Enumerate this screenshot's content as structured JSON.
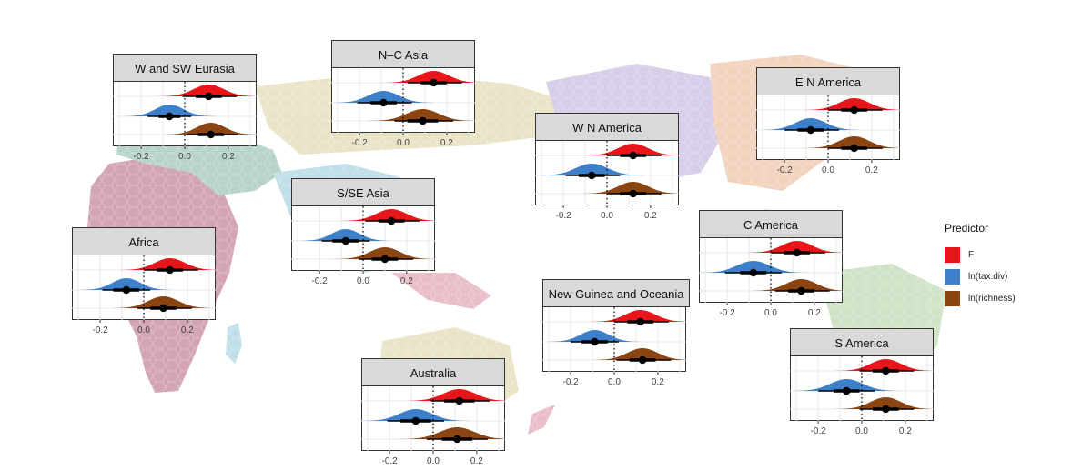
{
  "colors": {
    "F": "#e8161b",
    "tax_div": "#3d7fc9",
    "richness": "#8b4513",
    "ci": "#000000",
    "grid": "#e8e8e8"
  },
  "legend": {
    "title": "Predictor",
    "items": [
      {
        "label": "F",
        "color": "#e8161b"
      },
      {
        "label": "ln(tax.div)",
        "color": "#3d7fc9"
      },
      {
        "label": "ln(richness)",
        "color": "#8b4513"
      }
    ]
  },
  "chart_data": [
    {
      "type": "density",
      "panel": "W and SW Eurasia",
      "xticks": [
        "-0.2",
        "0.0",
        "0.2"
      ],
      "xlim": [
        -0.33,
        0.33
      ],
      "series": [
        {
          "name": "F",
          "mean": 0.11,
          "sd": 0.07,
          "inner": [
            0.05,
            0.17
          ],
          "outer": [
            -0.01,
            0.24
          ]
        },
        {
          "name": "ln(tax.div)",
          "mean": -0.07,
          "sd": 0.065,
          "inner": [
            -0.12,
            -0.02
          ],
          "outer": [
            -0.17,
            0.03
          ]
        },
        {
          "name": "ln(richness)",
          "mean": 0.12,
          "sd": 0.065,
          "inner": [
            0.06,
            0.18
          ],
          "outer": [
            0.01,
            0.24
          ]
        }
      ]
    },
    {
      "type": "density",
      "panel": "N–C Asia",
      "xticks": [
        "-0.2",
        "0.0",
        "0.2"
      ],
      "xlim": [
        -0.33,
        0.33
      ],
      "series": [
        {
          "name": "F",
          "mean": 0.14,
          "sd": 0.07,
          "inner": [
            0.08,
            0.2
          ],
          "outer": [
            0.02,
            0.27
          ]
        },
        {
          "name": "ln(tax.div)",
          "mean": -0.09,
          "sd": 0.07,
          "inner": [
            -0.15,
            -0.03
          ],
          "outer": [
            -0.21,
            0.04
          ]
        },
        {
          "name": "ln(richness)",
          "mean": 0.09,
          "sd": 0.075,
          "inner": [
            0.02,
            0.16
          ],
          "outer": [
            -0.04,
            0.23
          ]
        }
      ]
    },
    {
      "type": "density",
      "panel": "E N America",
      "xticks": [
        "-0.2",
        "0.0",
        "0.2"
      ],
      "xlim": [
        -0.33,
        0.33
      ],
      "series": [
        {
          "name": "F",
          "mean": 0.12,
          "sd": 0.07,
          "inner": [
            0.06,
            0.18
          ],
          "outer": [
            0.0,
            0.25
          ]
        },
        {
          "name": "ln(tax.div)",
          "mean": -0.08,
          "sd": 0.07,
          "inner": [
            -0.14,
            -0.02
          ],
          "outer": [
            -0.2,
            0.05
          ]
        },
        {
          "name": "ln(richness)",
          "mean": 0.12,
          "sd": 0.07,
          "inner": [
            0.06,
            0.18
          ],
          "outer": [
            0.0,
            0.25
          ]
        }
      ]
    },
    {
      "type": "density",
      "panel": "W N America",
      "xticks": [
        "-0.2",
        "0.0",
        "0.2"
      ],
      "xlim": [
        -0.33,
        0.33
      ],
      "series": [
        {
          "name": "F",
          "mean": 0.12,
          "sd": 0.07,
          "inner": [
            0.06,
            0.18
          ],
          "outer": [
            0.0,
            0.25
          ]
        },
        {
          "name": "ln(tax.div)",
          "mean": -0.07,
          "sd": 0.075,
          "inner": [
            -0.13,
            -0.01
          ],
          "outer": [
            -0.19,
            0.06
          ]
        },
        {
          "name": "ln(richness)",
          "mean": 0.12,
          "sd": 0.07,
          "inner": [
            0.06,
            0.18
          ],
          "outer": [
            0.0,
            0.25
          ]
        }
      ]
    },
    {
      "type": "density",
      "panel": "S/SE Asia",
      "xticks": [
        "-0.2",
        "0.0",
        "0.2"
      ],
      "xlim": [
        -0.33,
        0.33
      ],
      "series": [
        {
          "name": "F",
          "mean": 0.13,
          "sd": 0.07,
          "inner": [
            0.07,
            0.19
          ],
          "outer": [
            0.01,
            0.26
          ]
        },
        {
          "name": "ln(tax.div)",
          "mean": -0.08,
          "sd": 0.065,
          "inner": [
            -0.14,
            -0.02
          ],
          "outer": [
            -0.19,
            0.03
          ]
        },
        {
          "name": "ln(richness)",
          "mean": 0.1,
          "sd": 0.07,
          "inner": [
            0.04,
            0.16
          ],
          "outer": [
            -0.02,
            0.23
          ]
        }
      ]
    },
    {
      "type": "density",
      "panel": "Africa",
      "xticks": [
        "-0.2",
        "0.0",
        "0.2"
      ],
      "xlim": [
        -0.33,
        0.33
      ],
      "series": [
        {
          "name": "F",
          "mean": 0.12,
          "sd": 0.07,
          "inner": [
            0.06,
            0.18
          ],
          "outer": [
            0.0,
            0.25
          ]
        },
        {
          "name": "ln(tax.div)",
          "mean": -0.08,
          "sd": 0.065,
          "inner": [
            -0.14,
            -0.02
          ],
          "outer": [
            -0.19,
            0.03
          ]
        },
        {
          "name": "ln(richness)",
          "mean": 0.09,
          "sd": 0.07,
          "inner": [
            0.03,
            0.15
          ],
          "outer": [
            -0.03,
            0.22
          ]
        }
      ]
    },
    {
      "type": "density",
      "panel": "C America",
      "xticks": [
        "-0.2",
        "0.0",
        "0.2"
      ],
      "xlim": [
        -0.33,
        0.33
      ],
      "series": [
        {
          "name": "F",
          "mean": 0.12,
          "sd": 0.07,
          "inner": [
            0.06,
            0.18
          ],
          "outer": [
            0.0,
            0.25
          ]
        },
        {
          "name": "ln(tax.div)",
          "mean": -0.08,
          "sd": 0.075,
          "inner": [
            -0.14,
            -0.02
          ],
          "outer": [
            -0.21,
            0.05
          ]
        },
        {
          "name": "ln(richness)",
          "mean": 0.14,
          "sd": 0.07,
          "inner": [
            0.08,
            0.2
          ],
          "outer": [
            0.02,
            0.27
          ]
        }
      ]
    },
    {
      "type": "density",
      "panel": "New Guinea and Oceania",
      "xticks": [
        "-0.2",
        "0.0",
        "0.2"
      ],
      "xlim": [
        -0.33,
        0.33
      ],
      "series": [
        {
          "name": "F",
          "mean": 0.12,
          "sd": 0.07,
          "inner": [
            0.06,
            0.18
          ],
          "outer": [
            0.0,
            0.25
          ]
        },
        {
          "name": "ln(tax.div)",
          "mean": -0.09,
          "sd": 0.065,
          "inner": [
            -0.15,
            -0.03
          ],
          "outer": [
            -0.2,
            0.02
          ]
        },
        {
          "name": "ln(richness)",
          "mean": 0.13,
          "sd": 0.07,
          "inner": [
            0.07,
            0.19
          ],
          "outer": [
            0.01,
            0.26
          ]
        }
      ]
    },
    {
      "type": "density",
      "panel": "Australia",
      "xticks": [
        "-0.2",
        "0.0",
        "0.2"
      ],
      "xlim": [
        -0.33,
        0.33
      ],
      "series": [
        {
          "name": "F",
          "mean": 0.12,
          "sd": 0.075,
          "inner": [
            0.05,
            0.19
          ],
          "outer": [
            -0.01,
            0.26
          ]
        },
        {
          "name": "ln(tax.div)",
          "mean": -0.08,
          "sd": 0.075,
          "inner": [
            -0.15,
            -0.01
          ],
          "outer": [
            -0.21,
            0.05
          ]
        },
        {
          "name": "ln(richness)",
          "mean": 0.11,
          "sd": 0.08,
          "inner": [
            0.04,
            0.18
          ],
          "outer": [
            -0.03,
            0.25
          ]
        }
      ]
    },
    {
      "type": "density",
      "panel": "S America",
      "xticks": [
        "-0.2",
        "0.0",
        "0.2"
      ],
      "xlim": [
        -0.33,
        0.33
      ],
      "series": [
        {
          "name": "F",
          "mean": 0.11,
          "sd": 0.07,
          "inner": [
            0.05,
            0.17
          ],
          "outer": [
            -0.01,
            0.24
          ]
        },
        {
          "name": "ln(tax.div)",
          "mean": -0.07,
          "sd": 0.075,
          "inner": [
            -0.13,
            -0.01
          ],
          "outer": [
            -0.2,
            0.06
          ]
        },
        {
          "name": "ln(richness)",
          "mean": 0.11,
          "sd": 0.07,
          "inner": [
            0.05,
            0.17
          ],
          "outer": [
            -0.01,
            0.24
          ]
        }
      ]
    }
  ]
}
